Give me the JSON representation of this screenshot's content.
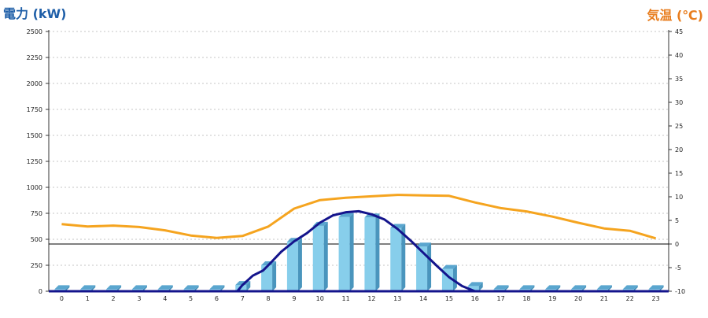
{
  "chart_data": {
    "type": "bar",
    "left_axis_title": "電力 (kW)",
    "right_axis_title": "気温 (℃)",
    "categories": [
      "0",
      "1",
      "2",
      "3",
      "4",
      "5",
      "6",
      "7",
      "8",
      "9",
      "10",
      "11",
      "12",
      "13",
      "14",
      "15",
      "16",
      "17",
      "18",
      "19",
      "20",
      "21",
      "22",
      "23"
    ],
    "left_ylim": [
      0,
      2500
    ],
    "left_ticks": [
      "0",
      "250",
      "500",
      "750",
      "1000",
      "1250",
      "1500",
      "1750",
      "2000",
      "2250",
      "2500"
    ],
    "right_ylim": [
      -10,
      45
    ],
    "right_ticks": [
      "-10",
      "-5",
      "0",
      "5",
      "10",
      "15",
      "20",
      "25",
      "30",
      "35",
      "40",
      "45"
    ],
    "grid": true,
    "bar_series": {
      "color": "#87ceeb",
      "values": [
        20,
        20,
        20,
        20,
        20,
        20,
        20,
        60,
        250,
        475,
        630,
        715,
        710,
        610,
        430,
        215,
        50,
        20,
        20,
        20,
        20,
        20,
        20,
        20
      ]
    },
    "temperature_series": {
      "color": "#f5a41f",
      "x": [
        0,
        1,
        2,
        3,
        4,
        5,
        6,
        7,
        8,
        9,
        10,
        11,
        12,
        13,
        14,
        15,
        16,
        17,
        18,
        19,
        20,
        21,
        22,
        23
      ],
      "values": [
        4.2,
        3.7,
        3.9,
        3.6,
        2.9,
        1.8,
        1.3,
        1.7,
        3.7,
        7.5,
        9.3,
        9.8,
        10.1,
        10.4,
        10.3,
        10.2,
        8.8,
        7.6,
        6.9,
        5.8,
        4.5,
        3.3,
        2.8,
        1.2
      ]
    },
    "power_line_series": {
      "color": "#14148c",
      "x": [
        6.8,
        7.0,
        7.4,
        7.8,
        8.0,
        8.5,
        9.0,
        9.5,
        10.0,
        10.5,
        11.0,
        11.5,
        12.0,
        12.5,
        13.0,
        13.5,
        14.0,
        14.5,
        15.0,
        15.5,
        16.0
      ],
      "values": [
        0,
        60,
        150,
        200,
        250,
        380,
        480,
        560,
        660,
        730,
        760,
        770,
        740,
        690,
        600,
        490,
        370,
        250,
        135,
        50,
        0
      ]
    },
    "reference_line": {
      "axis": "right",
      "value": 0
    }
  }
}
